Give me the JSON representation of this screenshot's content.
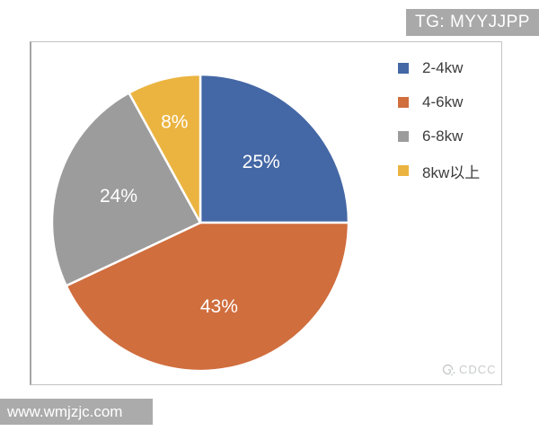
{
  "banner": {
    "text": "TG: MYYJJPP",
    "bg": "#a9a9a9",
    "fg": "#ffffff"
  },
  "watermark_bar": {
    "text": "www.wmjzjc.com",
    "bg": "#ababab",
    "fg": "#ffffff"
  },
  "panel_watermark": {
    "icon": "cdcc-swirl-icon",
    "text": "CDCC",
    "color": "#c9cbcb"
  },
  "chart_data": {
    "type": "pie",
    "title": "",
    "categories": [
      "2-4kw",
      "4-6kw",
      "6-8kw",
      "8kw以上"
    ],
    "values": [
      25,
      43,
      24,
      8
    ],
    "data_labels": [
      "25%",
      "43%",
      "24%",
      "8%"
    ],
    "colors": [
      "#4467a5",
      "#d06e3e",
      "#9c9c9c",
      "#ebb440"
    ],
    "label_color": "#ffffff",
    "slice_border_color": "#ffffff",
    "legend_position": "right",
    "start_angle_deg": 0,
    "direction": "clockwise"
  }
}
